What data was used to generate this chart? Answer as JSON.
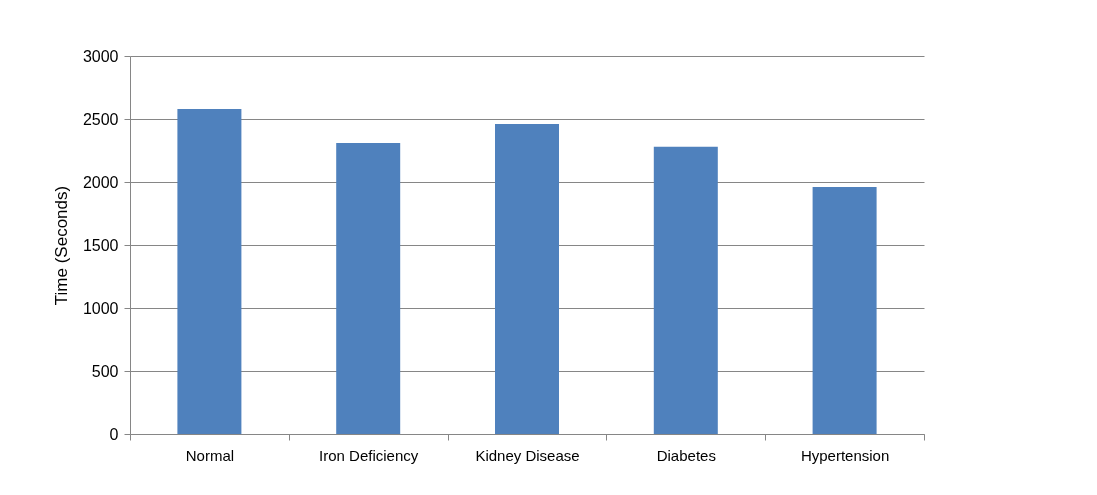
{
  "chart_data": {
    "type": "bar",
    "ylabel": "Time (Seconds)",
    "categories": [
      "Normal",
      "Iron Deficiency",
      "Kidney Disease",
      "Diabetes",
      "Hypertension"
    ],
    "values": [
      2580,
      2310,
      2460,
      2280,
      1960
    ],
    "color": "#4f81bd",
    "ylim": [
      0,
      3000
    ],
    "yticks": [
      0,
      500,
      1000,
      1500,
      2000,
      2500,
      3000
    ],
    "grid": "y",
    "legend": false
  }
}
